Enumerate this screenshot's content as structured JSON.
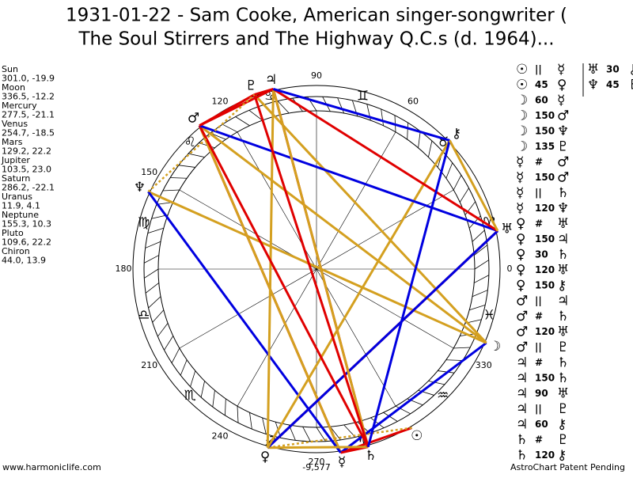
{
  "title_lines": [
    "1931-01-22 - Sam Cooke, American singer-songwriter (",
    "The Soul Stirrers and The Highway Q.C.s (d. 1964)..."
  ],
  "planets": [
    {
      "name": "Sun",
      "glyph": "☉",
      "coords": "301.0, -19.9"
    },
    {
      "name": "Moon",
      "glyph": "☽",
      "coords": "336.5, -12.2"
    },
    {
      "name": "Mercury",
      "glyph": "☿",
      "coords": "277.5, -21.1"
    },
    {
      "name": "Venus",
      "glyph": "♀",
      "coords": "254.7, -18.5"
    },
    {
      "name": "Mars",
      "glyph": "♂",
      "coords": "129.2, 22.2"
    },
    {
      "name": "Jupiter",
      "glyph": "♃",
      "coords": "103.5, 23.0"
    },
    {
      "name": "Saturn",
      "glyph": "♄",
      "coords": "286.2, -22.1"
    },
    {
      "name": "Uranus",
      "glyph": "♅",
      "coords": "11.9, 4.1"
    },
    {
      "name": "Neptune",
      "glyph": "♆",
      "coords": "155.3, 10.3"
    },
    {
      "name": "Pluto",
      "glyph": "♇",
      "coords": "109.6, 22.2"
    },
    {
      "name": "Chiron",
      "glyph": "⚷",
      "coords": "44.0, 13.9"
    }
  ],
  "signs": [
    "♈",
    "♉",
    "♊",
    "♋",
    "♌",
    "♍",
    "♎",
    "♏",
    "♐",
    "♑",
    "♒",
    "♓"
  ],
  "degree_labels": [
    0,
    60,
    90,
    120,
    150,
    180,
    210,
    240,
    270,
    330
  ],
  "aspect_colors": {
    "||": "#e00000",
    "#": "#e00000",
    "90": "#e00000",
    "120": "#0000e0",
    "60": "#0000e0",
    "150": "#d4a020",
    "135": "#d4a020",
    "45": "#d4a020",
    "30": "#d4a020"
  },
  "aspects": [
    {
      "p1": "☉",
      "aspect": "||",
      "p2": "☿"
    },
    {
      "p1": "☉",
      "aspect": "45",
      "p2": "♀"
    },
    {
      "p1": "☽",
      "aspect": "60",
      "p2": "☿"
    },
    {
      "p1": "☽",
      "aspect": "150",
      "p2": "♂"
    },
    {
      "p1": "☽",
      "aspect": "150",
      "p2": "♆"
    },
    {
      "p1": "☽",
      "aspect": "135",
      "p2": "♇"
    },
    {
      "p1": "☿",
      "aspect": "#",
      "p2": "♂"
    },
    {
      "p1": "☿",
      "aspect": "150",
      "p2": "♂"
    },
    {
      "p1": "☿",
      "aspect": "||",
      "p2": "♄"
    },
    {
      "p1": "☿",
      "aspect": "120",
      "p2": "♆"
    },
    {
      "p1": "♀",
      "aspect": "#",
      "p2": "♅"
    },
    {
      "p1": "♀",
      "aspect": "150",
      "p2": "♃"
    },
    {
      "p1": "♀",
      "aspect": "30",
      "p2": "♄"
    },
    {
      "p1": "♀",
      "aspect": "120",
      "p2": "♅"
    },
    {
      "p1": "♀",
      "aspect": "150",
      "p2": "⚷"
    },
    {
      "p1": "♂",
      "aspect": "||",
      "p2": "♃"
    },
    {
      "p1": "♂",
      "aspect": "#",
      "p2": "♄"
    },
    {
      "p1": "♂",
      "aspect": "120",
      "p2": "♅"
    },
    {
      "p1": "♂",
      "aspect": "||",
      "p2": "♇"
    },
    {
      "p1": "♃",
      "aspect": "#",
      "p2": "♄"
    },
    {
      "p1": "♃",
      "aspect": "150",
      "p2": "♄"
    },
    {
      "p1": "♃",
      "aspect": "90",
      "p2": "♅"
    },
    {
      "p1": "♃",
      "aspect": "||",
      "p2": "♇"
    },
    {
      "p1": "♃",
      "aspect": "60",
      "p2": "⚷"
    },
    {
      "p1": "♄",
      "aspect": "#",
      "p2": "♇"
    },
    {
      "p1": "♄",
      "aspect": "120",
      "p2": "⚷"
    }
  ],
  "aspects_extra": [
    {
      "p1": "♅",
      "aspect": "30",
      "p2": "⚷"
    },
    {
      "p1": "♆",
      "aspect": "45",
      "p2": "♇"
    }
  ],
  "center_value": "-9,577",
  "footer_left": "www.harmoniclife.com",
  "footer_right": "AstroChart Patent Pending"
}
